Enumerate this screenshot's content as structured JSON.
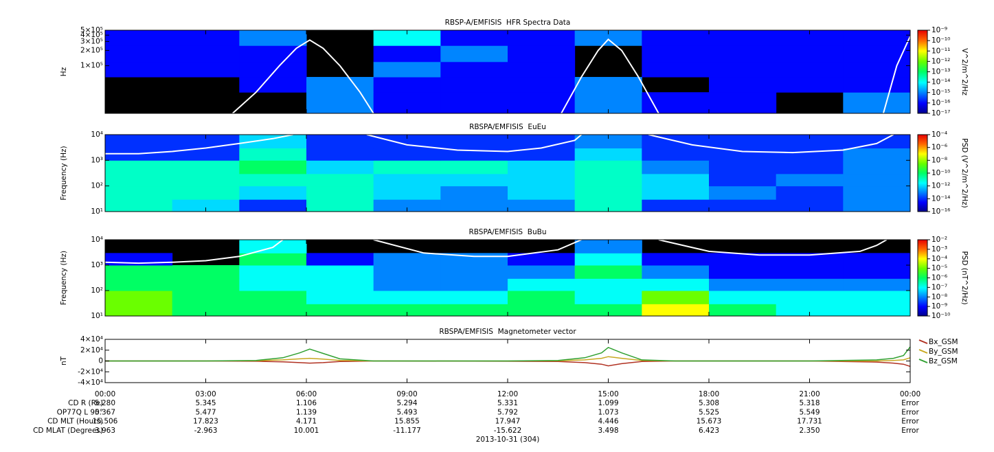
{
  "chart_data": [
    {
      "type": "heatmap",
      "title": "RBSP-A/EMFISIS  HFR Spectra Data",
      "ylabel": "Hz",
      "ylim": [
        11500,
        500000
      ],
      "log_y": true,
      "yticks": [
        {
          "value": 500000,
          "label": "5×10⁵"
        },
        {
          "value": 400000,
          "label": "4×10⁵"
        },
        {
          "value": 300000,
          "label": "3×10⁵"
        },
        {
          "value": 200000,
          "label": "2×10⁵"
        },
        {
          "value": 100000,
          "label": "1×10⁵"
        }
      ],
      "xlim": [
        0,
        24
      ],
      "x": [
        0,
        2,
        4,
        6,
        8,
        10,
        12,
        14,
        16,
        18,
        20,
        22,
        24
      ],
      "y": [
        11500,
        30000,
        60000,
        120000,
        250000,
        500000
      ],
      "z": [
        [
          null,
          null,
          null,
          1e-15,
          1e-16,
          1e-16,
          1e-16,
          1e-15,
          1e-16,
          1e-16,
          null,
          1e-15
        ],
        [
          null,
          null,
          1e-16,
          1e-15,
          1e-16,
          1e-16,
          1e-16,
          1e-15,
          null,
          1e-16,
          1e-16,
          1e-16
        ],
        [
          1e-16,
          1e-16,
          1e-16,
          null,
          1e-15,
          1e-16,
          1e-16,
          null,
          1e-16,
          1e-16,
          1e-16,
          1e-16
        ],
        [
          1e-16,
          1e-16,
          1e-16,
          null,
          1e-16,
          1e-15,
          1e-16,
          null,
          1e-16,
          1e-16,
          1e-16,
          1e-16
        ],
        [
          1e-16,
          1e-16,
          1e-15,
          null,
          1e-14,
          1e-16,
          1e-16,
          1e-15,
          1e-16,
          1e-16,
          1e-16,
          1e-16
        ]
      ],
      "colorbar": {
        "label": "V^2/m^2/Hz",
        "lim": [
          1e-17,
          1e-09
        ],
        "log": true,
        "ticks": [
          {
            "value": 1e-09,
            "label": "10⁻⁹"
          },
          {
            "value": 1e-10,
            "label": "10⁻¹⁰"
          },
          {
            "value": 1e-11,
            "label": "10⁻¹¹"
          },
          {
            "value": 1e-12,
            "label": "10⁻¹²"
          },
          {
            "value": 1e-13,
            "label": "10⁻¹³"
          },
          {
            "value": 1e-14,
            "label": "10⁻¹⁴"
          },
          {
            "value": 1e-15,
            "label": "10⁻¹⁵"
          },
          {
            "value": 1e-16,
            "label": "10⁻¹⁶"
          },
          {
            "value": 1e-17,
            "label": "10⁻¹⁷"
          }
        ]
      },
      "overlay": {
        "color": "#ffffff",
        "x": [
          3.8,
          4.5,
          5.2,
          5.7,
          6.1,
          6.5,
          7,
          7.6,
          8,
          null,
          13.6,
          14.2,
          14.7,
          15,
          15.4,
          15.9,
          16.5,
          null,
          23.2,
          23.6,
          24
        ],
        "values": [
          11500,
          30000,
          100000,
          220000,
          320000,
          220000,
          100000,
          30000,
          11500,
          null,
          11500,
          60000,
          200000,
          330000,
          200000,
          60000,
          11500,
          null,
          11500,
          100000,
          380000
        ]
      }
    },
    {
      "type": "heatmap",
      "title": "RBSPA/EMFISIS  EuEu",
      "ylabel": "Frequency (Hz)",
      "ylim": [
        10,
        10000
      ],
      "log_y": true,
      "yticks": [
        {
          "value": 10,
          "label": "10¹"
        },
        {
          "value": 100,
          "label": "10²"
        },
        {
          "value": 1000,
          "label": "10³"
        },
        {
          "value": 10000,
          "label": "10⁴"
        }
      ],
      "xlim": [
        0,
        24
      ],
      "x": [
        0,
        2,
        4,
        6,
        8,
        10,
        12,
        14,
        16,
        18,
        20,
        22,
        24
      ],
      "y": [
        10,
        30,
        100,
        300,
        1000,
        3000,
        10000
      ],
      "z": [
        [
          1e-11,
          1e-12,
          1e-14,
          1e-11,
          1e-13,
          1e-13,
          1e-13,
          1e-11,
          1e-14,
          1e-14,
          1e-14,
          1e-13
        ],
        [
          1e-11,
          1e-11,
          1e-12,
          1e-11,
          1e-12,
          1e-13,
          1e-12,
          1e-11,
          1e-12,
          1e-13,
          1e-14,
          1e-13
        ],
        [
          1e-11,
          1e-11,
          1e-11,
          1e-11,
          1e-12,
          1e-12,
          1e-12,
          1e-11,
          1e-12,
          1e-14,
          1e-13,
          1e-13
        ],
        [
          1e-11,
          1e-11,
          1e-10,
          1e-12,
          1e-11,
          1e-11,
          1e-12,
          1e-11,
          1e-13,
          1e-14,
          1e-14,
          1e-13
        ],
        [
          1e-14,
          1e-14,
          1e-11,
          1e-14,
          1e-14,
          1e-14,
          1e-14,
          1e-12,
          1e-14,
          1e-14,
          1e-14,
          1e-13
        ],
        [
          1e-14,
          1e-14,
          1e-12,
          1e-14,
          1e-14,
          1e-14,
          1e-14,
          1e-13,
          1e-14,
          1e-14,
          1e-14,
          1e-14
        ]
      ],
      "colorbar": {
        "label": "PSD (V^2/m^2/Hz)",
        "lim": [
          1e-16,
          0.0001
        ],
        "log": true,
        "ticks": [
          {
            "value": 0.0001,
            "label": "10⁻⁴"
          },
          {
            "value": 1e-06,
            "label": "10⁻⁶"
          },
          {
            "value": 1e-08,
            "label": "10⁻⁸"
          },
          {
            "value": 1e-10,
            "label": "10⁻¹⁰"
          },
          {
            "value": 1e-12,
            "label": "10⁻¹²"
          },
          {
            "value": 1e-14,
            "label": "10⁻¹⁴"
          },
          {
            "value": 1e-16,
            "label": "10⁻¹⁶"
          }
        ]
      },
      "overlay": {
        "color": "#ffffff",
        "x": [
          0,
          1,
          2,
          3,
          4,
          5,
          5.6,
          null,
          7.8,
          9,
          10.5,
          12,
          13,
          14,
          14.2,
          null,
          16.2,
          17.5,
          19,
          20.5,
          22,
          23,
          23.5
        ],
        "values": [
          1800,
          1800,
          2200,
          3000,
          4500,
          7000,
          10000,
          null,
          10000,
          4000,
          2500,
          2200,
          3000,
          6000,
          10000,
          null,
          10000,
          4000,
          2200,
          2000,
          2500,
          4500,
          10000
        ]
      }
    },
    {
      "type": "heatmap",
      "title": "RBSPA/EMFISIS  BuBu",
      "ylabel": "Frequency (Hz)",
      "ylim": [
        10,
        10000
      ],
      "log_y": true,
      "yticks": [
        {
          "value": 10,
          "label": "10¹"
        },
        {
          "value": 100,
          "label": "10²"
        },
        {
          "value": 1000,
          "label": "10³"
        },
        {
          "value": 10000,
          "label": "10⁴"
        }
      ],
      "xlim": [
        0,
        24
      ],
      "x": [
        0,
        2,
        4,
        6,
        8,
        10,
        12,
        14,
        16,
        18,
        20,
        22,
        24
      ],
      "y": [
        10,
        30,
        100,
        300,
        1000,
        3000,
        10000
      ],
      "z": [
        [
          1e-05,
          1e-06,
          1e-06,
          1e-06,
          1e-06,
          1e-06,
          1e-06,
          1e-06,
          0.0001,
          1e-06,
          1e-07,
          1e-07
        ],
        [
          1e-05,
          1e-06,
          1e-06,
          1e-07,
          1e-07,
          1e-07,
          1e-06,
          1e-07,
          1e-05,
          1e-07,
          1e-07,
          1e-07
        ],
        [
          1e-06,
          1e-06,
          1e-07,
          1e-07,
          1e-08,
          1e-08,
          1e-07,
          1e-07,
          1e-07,
          1e-08,
          1e-08,
          1e-08
        ],
        [
          1e-06,
          1e-06,
          1e-07,
          1e-07,
          1e-08,
          1e-08,
          1e-08,
          1e-06,
          1e-08,
          1e-09,
          1e-09,
          1e-09
        ],
        [
          1e-09,
          null,
          1e-06,
          1e-09,
          1e-08,
          1e-08,
          1e-09,
          1e-07,
          1e-09,
          1e-09,
          1e-09,
          1e-09
        ],
        [
          null,
          null,
          1e-07,
          null,
          null,
          null,
          null,
          1e-08,
          null,
          null,
          null,
          null
        ]
      ],
      "colorbar": {
        "label": "PSD (nT^2/Hz)",
        "lim": [
          1e-10,
          0.01
        ],
        "log": true,
        "ticks": [
          {
            "value": 0.01,
            "label": "10⁻²"
          },
          {
            "value": 0.001,
            "label": "10⁻³"
          },
          {
            "value": 0.0001,
            "label": "10⁻⁴"
          },
          {
            "value": 1e-05,
            "label": "10⁻⁵"
          },
          {
            "value": 1e-06,
            "label": "10⁻⁶"
          },
          {
            "value": 1e-07,
            "label": "10⁻⁷"
          },
          {
            "value": 1e-08,
            "label": "10⁻⁸"
          },
          {
            "value": 1e-09,
            "label": "10⁻⁹"
          },
          {
            "value": 1e-10,
            "label": "10⁻¹⁰"
          }
        ]
      },
      "overlay": {
        "color": "#ffffff",
        "x": [
          0,
          1,
          2,
          3,
          4,
          5,
          5.3,
          null,
          8,
          9.5,
          11,
          12,
          13.5,
          14.2,
          null,
          16.5,
          18,
          19.5,
          21,
          22.5,
          23,
          23.3
        ],
        "values": [
          1300,
          1200,
          1300,
          1500,
          2200,
          5000,
          10000,
          null,
          10000,
          3000,
          2200,
          2200,
          4000,
          10000,
          null,
          10000,
          3500,
          2500,
          2500,
          3500,
          6000,
          10000
        ]
      }
    },
    {
      "type": "line",
      "title": "RBSPA/EMFISIS  Magnetometer vector",
      "ylabel": "nT",
      "ylim": [
        -40000,
        40000
      ],
      "yticks": [
        {
          "value": 40000,
          "label": "4×10⁴"
        },
        {
          "value": 20000,
          "label": "2×10⁴"
        },
        0,
        {
          "value": -20000,
          "label": "-2×10⁴"
        },
        {
          "value": -40000,
          "label": "-4×10⁴"
        }
      ],
      "xlim": [
        0,
        24
      ],
      "xticks": [
        {
          "value": 0,
          "label": "00:00"
        },
        {
          "value": 3,
          "label": "03:00"
        },
        {
          "value": 6,
          "label": "06:00"
        },
        {
          "value": 9,
          "label": "09:00"
        },
        {
          "value": 12,
          "label": "12:00"
        },
        {
          "value": 15,
          "label": "15:00"
        },
        {
          "value": 18,
          "label": "18:00"
        },
        {
          "value": 21,
          "label": "21:00"
        },
        {
          "value": 24,
          "label": "00:00"
        }
      ],
      "x": [
        0,
        3,
        4.5,
        5.3,
        5.8,
        6.1,
        6.5,
        7,
        8,
        12,
        13.5,
        14.3,
        14.8,
        15,
        15.4,
        16,
        17,
        21,
        23,
        23.5,
        23.8,
        24
      ],
      "series": [
        {
          "name": "Bx_GSM",
          "color": "#b03020",
          "values": [
            0,
            0,
            -500,
            -1500,
            -3000,
            -4000,
            -3000,
            -1000,
            0,
            -500,
            -1000,
            -3000,
            -6000,
            -9000,
            -5000,
            -1000,
            0,
            0,
            -2000,
            -4000,
            -6000,
            -10000
          ]
        },
        {
          "name": "By_GSM",
          "color": "#c8a820",
          "values": [
            0,
            0,
            500,
            2000,
            4000,
            5000,
            3500,
            1000,
            0,
            0,
            300,
            2000,
            5000,
            8000,
            5000,
            1000,
            0,
            0,
            0,
            1000,
            2000,
            6000
          ]
        },
        {
          "name": "Bz_GSM",
          "color": "#30a030",
          "values": [
            0,
            0,
            1000,
            6000,
            15000,
            22000,
            14000,
            4000,
            0,
            0,
            1000,
            6000,
            15000,
            25000,
            15000,
            2000,
            0,
            0,
            2000,
            5000,
            10000,
            26000
          ]
        }
      ]
    }
  ],
  "ephemeris": {
    "date": "2013-10-31 (304)",
    "rows": [
      {
        "label": "CD R (Re)",
        "values": [
          "5.280",
          "5.345",
          "1.106",
          "5.294",
          "5.331",
          "1.099",
          "5.308",
          "5.318",
          "Error"
        ]
      },
      {
        "label": "OP77Q L 90°",
        "values": [
          "5.367",
          "5.477",
          "1.139",
          "5.493",
          "5.792",
          "1.073",
          "5.525",
          "5.549",
          "Error"
        ]
      },
      {
        "label": "CD MLT (Hours)",
        "values": [
          "15.506",
          "17.823",
          "4.171",
          "15.855",
          "17.947",
          "4.446",
          "15.673",
          "17.731",
          "Error"
        ]
      },
      {
        "label": "CD MLAT (Degrees)",
        "values": [
          "3.963",
          "-2.963",
          "10.001",
          "-11.177",
          "-15.622",
          "3.498",
          "6.423",
          "2.350",
          "Error"
        ]
      }
    ]
  }
}
